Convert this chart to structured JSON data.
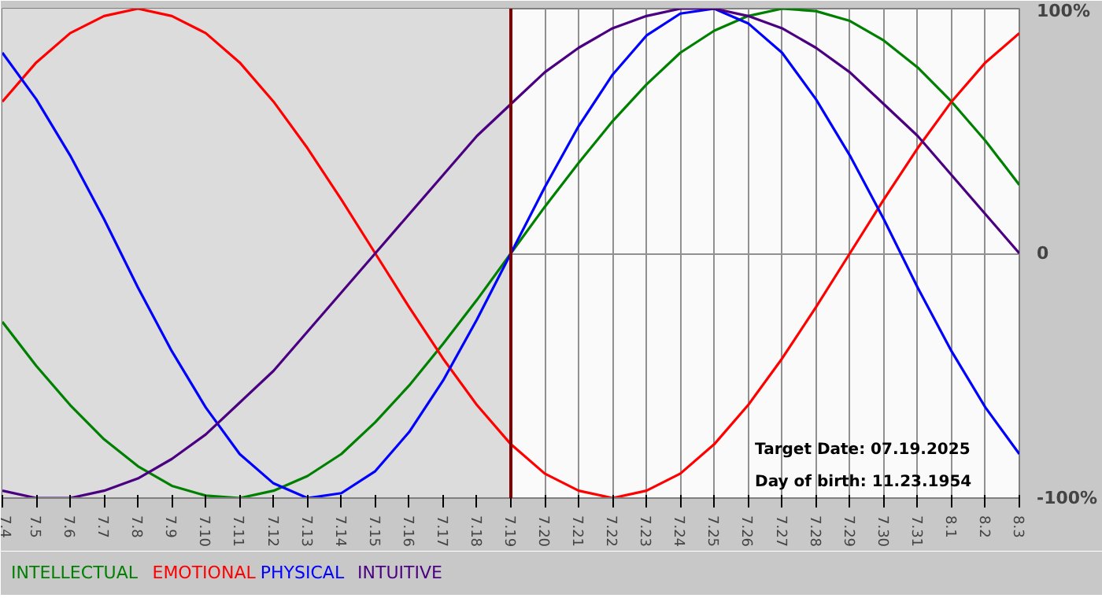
{
  "chart_data": {
    "type": "line",
    "categories": [
      "7.4",
      "7.5",
      "7.6",
      "7.7",
      "7.8",
      "7.9",
      "7.10",
      "7.11",
      "7.12",
      "7.13",
      "7.14",
      "7.15",
      "7.16",
      "7.17",
      "7.18",
      "7.19",
      "7.20",
      "7.21",
      "7.22",
      "7.23",
      "7.24",
      "7.25",
      "7.26",
      "7.27",
      "7.28",
      "7.29",
      "7.30",
      "7.31",
      "8.1",
      "8.2",
      "8.3"
    ],
    "series": [
      {
        "name": "INTELLECTUAL",
        "color": "#008000",
        "values": [
          -28,
          -46,
          -62,
          -76,
          -87,
          -95,
          -99,
          -100,
          -97,
          -91,
          -82,
          -69,
          -54,
          -37,
          -19,
          0,
          19,
          37,
          54,
          69,
          82,
          91,
          97,
          100,
          99,
          95,
          87,
          76,
          62,
          46,
          28
        ]
      },
      {
        "name": "EMOTIONAL",
        "color": "#ff0000",
        "values": [
          62,
          78,
          90,
          97,
          100,
          97,
          90,
          78,
          62,
          43,
          22,
          0,
          -22,
          -43,
          -62,
          -78,
          -90,
          -97,
          -100,
          -97,
          -90,
          -78,
          -62,
          -43,
          -22,
          0,
          22,
          43,
          62,
          78,
          90
        ]
      },
      {
        "name": "PHYSICAL",
        "color": "#0000ff",
        "values": [
          82,
          63,
          40,
          14,
          -14,
          -40,
          -63,
          -82,
          -94,
          -100,
          -98,
          -89,
          -73,
          -52,
          -27,
          0,
          27,
          52,
          73,
          89,
          98,
          100,
          94,
          82,
          63,
          40,
          14,
          -14,
          -40,
          -63,
          -82
        ]
      },
      {
        "name": "INTUITIVE",
        "color": "#4b0082",
        "values": [
          -97,
          -100,
          -100,
          -97,
          -92,
          -84,
          -74,
          -61,
          -48,
          -32,
          -16,
          0,
          16,
          32,
          48,
          61,
          74,
          84,
          92,
          97,
          100,
          100,
          97,
          92,
          84,
          74,
          61,
          48,
          32,
          16,
          0
        ]
      }
    ],
    "ylim": [
      -100,
      100
    ],
    "yticks": [
      {
        "value": 100,
        "label": "100%"
      },
      0,
      {
        "value": -100,
        "label": "-100%"
      }
    ],
    "ref_lines": [
      {
        "axis": "x",
        "value": "7.19",
        "color": "#800000"
      }
    ],
    "bands": [
      {
        "axis": "x",
        "from": "7.4",
        "to": "7.19",
        "color": "#dcdcdc"
      }
    ],
    "annotations": [
      "Target Date: 07.19.2025",
      "Day of birth: 11.23.1954"
    ],
    "grid": true,
    "marker": "none",
    "line_style": "solid"
  }
}
